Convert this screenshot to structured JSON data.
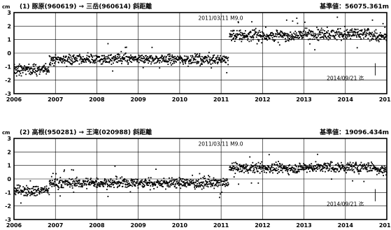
{
  "chart_data": [
    {
      "type": "scatter",
      "title": "(1) 豚原(960619) → 三岳(960614)   斜距離",
      "base_label": "基準値：56075.361m",
      "ylabel": "cm",
      "ylim": [
        -3,
        3
      ],
      "yticks": [
        "3",
        "2",
        "1",
        "0",
        "-1",
        "-2",
        "-3"
      ],
      "xlim": [
        2006,
        2015
      ],
      "xticks": [
        "2006",
        "2007",
        "2008",
        "2009",
        "2010",
        "2011",
        "2012",
        "2013",
        "2014",
        "2015"
      ],
      "grid": true,
      "annotation_event": "2011/03/11 M9.0",
      "annotation_end": "2014/09/21 迄",
      "segments": [
        {
          "x_start": 2006.0,
          "x_end": 2006.85,
          "level": -1.2,
          "spread": 0.35
        },
        {
          "x_start": 2006.85,
          "x_end": 2011.18,
          "level": -0.45,
          "spread": 0.35
        },
        {
          "x_start": 2011.2,
          "x_end": 2012.9,
          "level": 1.3,
          "spread": 0.4
        },
        {
          "x_start": 2012.9,
          "x_end": 2014.72,
          "level": 1.4,
          "spread": 0.4
        },
        {
          "x_start": 2014.72,
          "x_end": 2015.0,
          "level": 1.2,
          "spread": 0.4
        }
      ]
    },
    {
      "type": "scatter",
      "title": "(2) 高根(950281) → 王滝(020988)   斜距離",
      "base_label": "基準値：19096.434m",
      "ylabel": "cm",
      "ylim": [
        -3,
        3
      ],
      "yticks": [
        "3",
        "2",
        "1",
        "0",
        "-1",
        "-2",
        "-3"
      ],
      "xlim": [
        2006,
        2015
      ],
      "xticks": [
        "2006",
        "2007",
        "2008",
        "2009",
        "2010",
        "2011",
        "2012",
        "2013",
        "2014",
        "2015"
      ],
      "grid": true,
      "annotation_event": "2011/03/11 M9.0",
      "annotation_end": "2014/09/21 迄",
      "segments": [
        {
          "x_start": 2006.0,
          "x_end": 2006.85,
          "level": -0.85,
          "spread": 0.35
        },
        {
          "x_start": 2006.85,
          "x_end": 2011.18,
          "level": -0.3,
          "spread": 0.35
        },
        {
          "x_start": 2011.2,
          "x_end": 2012.9,
          "level": 0.8,
          "spread": 0.35
        },
        {
          "x_start": 2012.9,
          "x_end": 2014.72,
          "level": 0.85,
          "spread": 0.35
        },
        {
          "x_start": 2014.72,
          "x_end": 2015.0,
          "level": 0.7,
          "spread": 0.35
        }
      ]
    }
  ]
}
